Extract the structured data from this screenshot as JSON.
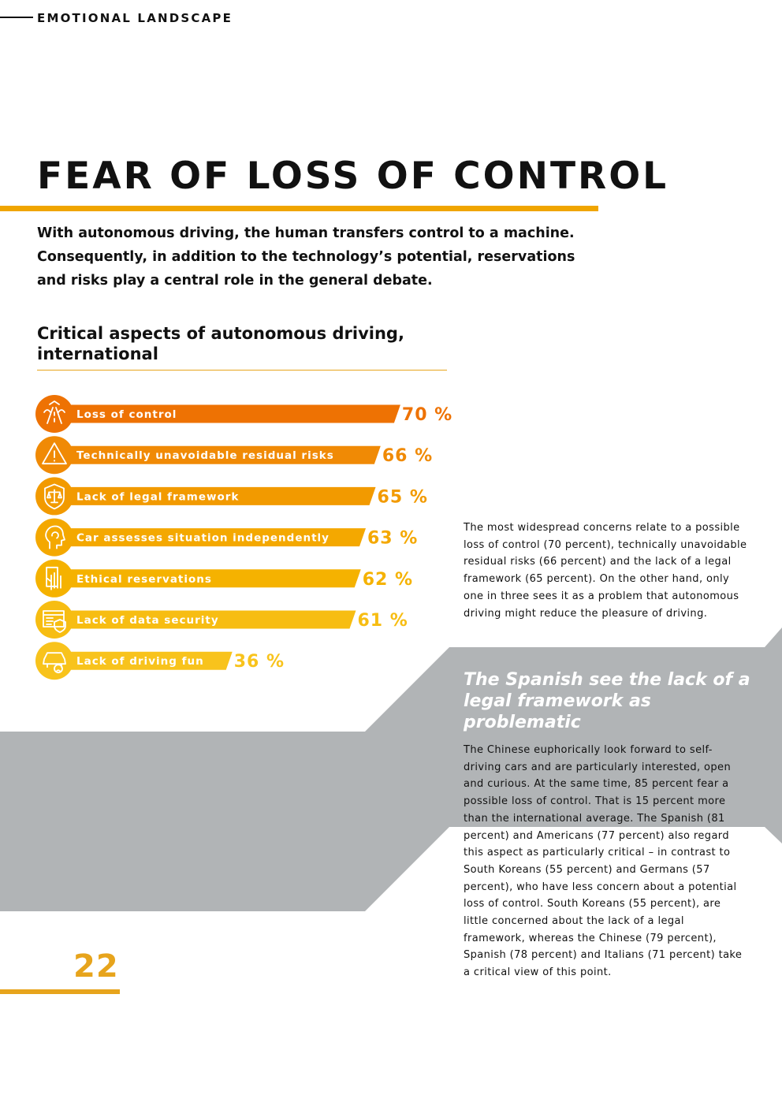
{
  "header": {
    "section": "EMOTIONAL LANDSCAPE"
  },
  "title": "FEAR OF LOSS OF CONTROL",
  "intro": "With autonomous driving, the human transfers control to a machine. Consequently, in addition to the technology’s potential, reservations and risks play a central role in the general debate.",
  "chart_data": {
    "type": "bar",
    "title": "Critical aspects of autonomous driving, international",
    "categories": [
      "Loss of control",
      "Technically unavoidable residual risks",
      "Lack of legal framework",
      "Car assesses situation independently",
      "Ethical reservations",
      "Lack of data security",
      "Lack of driving fun"
    ],
    "values": [
      70,
      66,
      65,
      63,
      62,
      61,
      36
    ],
    "value_labels": [
      "70 %",
      "66 %",
      "65 %",
      "63 %",
      "62 %",
      "61 %",
      "36 %"
    ],
    "icons": [
      "road-icon",
      "warning-triangle-icon",
      "scales-shield-icon",
      "head-cycle-icon",
      "hand-stop-icon",
      "data-shield-icon",
      "car-sad-face-icon"
    ],
    "colors": [
      "#ee7203",
      "#f08a05",
      "#f29a00",
      "#f4a800",
      "#f5b200",
      "#f7bd12",
      "#f8c31c"
    ],
    "orientation": "horizontal",
    "xlim": [
      0,
      100
    ],
    "grid": false
  },
  "aside": {
    "para1": "The most widespread concerns relate to a possible loss of control (70 percent), technically unavoidable residual risks (66 percent) and the lack of a legal framework (65 percent). On the other hand, only one in three sees it as a problem that autonomous driving might reduce the pleasure of driving.",
    "quote": "The Spanish see the lack of a legal framework as problematic",
    "para2": "The Chinese euphorically look forward to self-driving cars and are particularly interested, open and curious. At the same time, 85 percent fear a possible loss of control. That is 15 percent more than the international average. The Spanish (81 percent) and Americans (77 percent) also regard this aspect as particularly critical – in contrast to South Koreans (55 percent) and Germans (57 percent), who have less concern about a potential loss of control. South Koreans (55 percent), are little concerned about the lack of a legal framework, whereas the Chinese (79 percent), Spanish (78 percent) and Italians (71 percent) take a critical view of this point."
  },
  "footer": {
    "page_number": "22"
  },
  "colors": {
    "accent": "#e7a41c",
    "gray_band": "#b1b4b6"
  }
}
